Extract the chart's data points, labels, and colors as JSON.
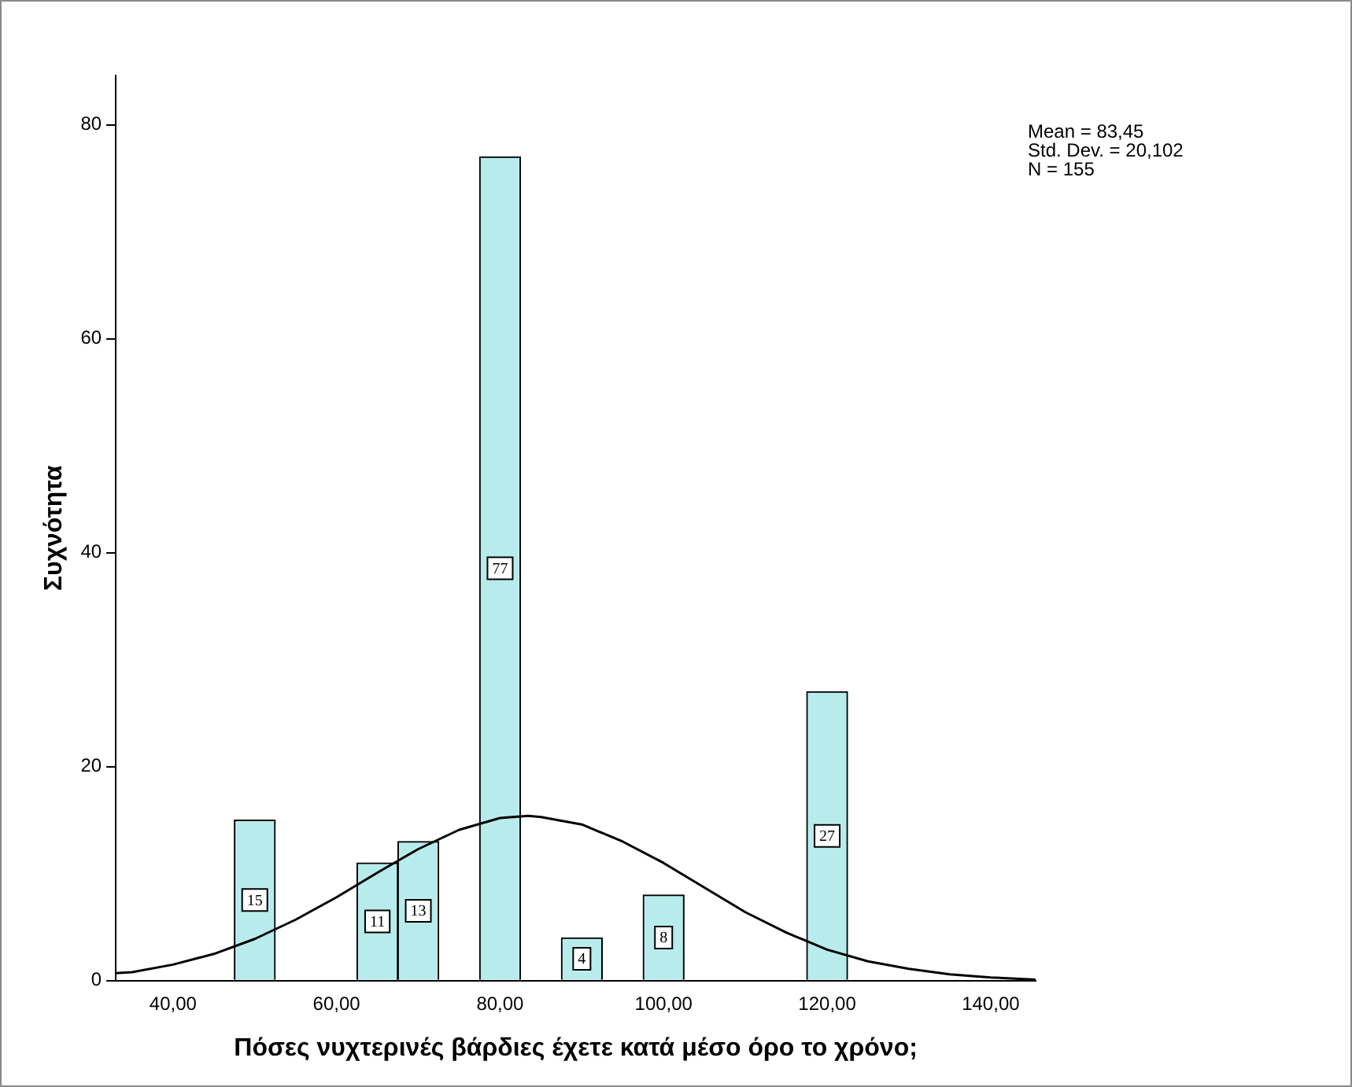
{
  "chart_data": {
    "type": "histogram",
    "xlabel": "Πόσες νυχτερινές βάρδιες έχετε κατά μέσο όρο το χρόνο;",
    "ylabel": "Συχνότητα",
    "bins": [
      47.5,
      52.5,
      57.5,
      62.5,
      67.5,
      72.5,
      77.5,
      82.5,
      87.5,
      92.5,
      97.5,
      102.5,
      107.5,
      112.5,
      117.5,
      122.5
    ],
    "values": [
      15,
      0,
      0,
      11,
      13,
      0,
      77,
      0,
      4,
      0,
      8,
      0,
      0,
      0,
      27
    ],
    "value_labels": [
      "15",
      null,
      null,
      "11",
      "13",
      null,
      "77",
      null,
      "4",
      null,
      "8",
      null,
      null,
      null,
      "27"
    ],
    "color": "#b8ecec",
    "series": [
      {
        "type": "line",
        "color": "#000000",
        "x": [
          33,
          35,
          40,
          45,
          50,
          55,
          60,
          65,
          70,
          75,
          80,
          83.45,
          85,
          90,
          95,
          100,
          105,
          110,
          115,
          120,
          125,
          130,
          135,
          140,
          145.5
        ],
        "values": [
          0.7,
          0.8,
          1.5,
          2.5,
          3.9,
          5.7,
          7.8,
          10.1,
          12.3,
          14.1,
          15.2,
          15.4,
          15.3,
          14.6,
          13.0,
          11.0,
          8.7,
          6.4,
          4.5,
          2.9,
          1.8,
          1.1,
          0.6,
          0.3,
          0.1
        ]
      }
    ],
    "xlim": [
      33,
      145.5
    ],
    "xticks": [
      {
        "value": 40,
        "label": "40,00"
      },
      {
        "value": 60,
        "label": "60,00"
      },
      {
        "value": 80,
        "label": "80,00"
      },
      {
        "value": 100,
        "label": "100,00"
      },
      {
        "value": 120,
        "label": "120,00"
      },
      {
        "value": 140,
        "label": "140,00"
      }
    ],
    "ylim": [
      0,
      84.6
    ],
    "yticks": [
      0,
      20,
      40,
      60,
      80
    ],
    "grid": false,
    "legend": false,
    "marker": "none",
    "line_style": "solid",
    "annotations": [
      "Mean = 83,45",
      "Std. Dev. = 20,102",
      "N = 155"
    ]
  }
}
